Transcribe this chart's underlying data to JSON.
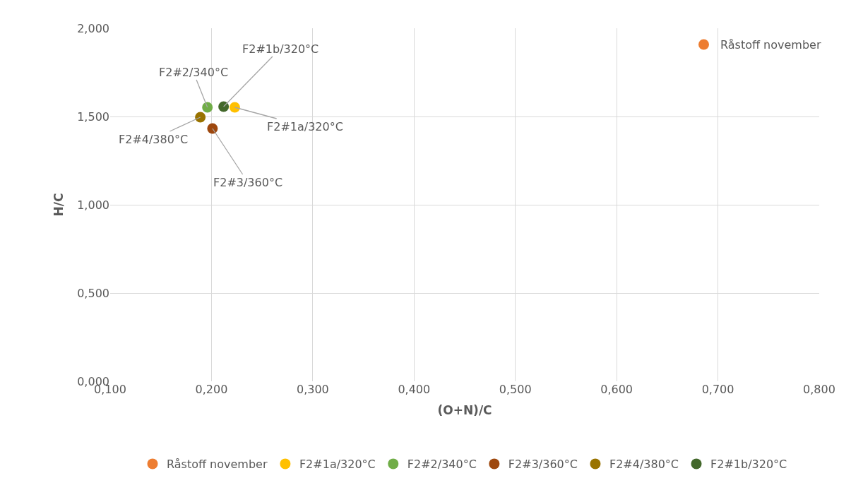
{
  "chart_data": {
    "type": "scatter",
    "xlabel": "(O+N)/C",
    "ylabel": "H/C",
    "series": [
      {
        "name": "Råstoff november",
        "color": "#ed7d31",
        "x": [
          0.686
        ],
        "values": [
          1.908
        ]
      },
      {
        "name": "F2#1a/320°C",
        "color": "#ffc000",
        "x": [
          0.223
        ],
        "values": [
          1.552
        ]
      },
      {
        "name": "F2#2/340°C",
        "color": "#70ad47",
        "x": [
          0.196
        ],
        "values": [
          1.552
        ]
      },
      {
        "name": "F2#3/360°C",
        "color": "#9e480e",
        "x": [
          0.201
        ],
        "values": [
          1.432
        ]
      },
      {
        "name": "F2#4/380°C",
        "color": "#997300",
        "x": [
          0.189
        ],
        "values": [
          1.496
        ]
      },
      {
        "name": "F2#1b/320°C",
        "color": "#43682b",
        "x": [
          0.212
        ],
        "values": [
          1.556
        ]
      }
    ],
    "xlim": [
      0.1,
      0.8
    ],
    "xticks": [
      {
        "value": 0.1,
        "label": "0,100"
      },
      {
        "value": 0.2,
        "label": "0,200"
      },
      {
        "value": 0.3,
        "label": "0,300"
      },
      {
        "value": 0.4,
        "label": "0,400"
      },
      {
        "value": 0.5,
        "label": "0,500"
      },
      {
        "value": 0.6,
        "label": "0,600"
      },
      {
        "value": 0.7,
        "label": "0,700"
      },
      {
        "value": 0.8,
        "label": "0,800"
      }
    ],
    "ylim": [
      0,
      2
    ],
    "yticks": [
      {
        "value": 0,
        "label": "0,000"
      },
      {
        "value": 0.5,
        "label": "0,500"
      },
      {
        "value": 1,
        "label": "1,000"
      },
      {
        "value": 1.5,
        "label": "1,500"
      },
      {
        "value": 2,
        "label": "2,000"
      }
    ],
    "grid": true,
    "legend": "bottom",
    "marker": "circle"
  }
}
